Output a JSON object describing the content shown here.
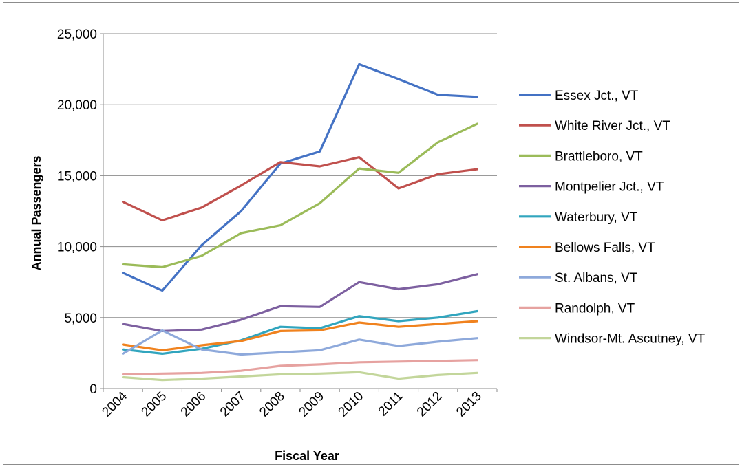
{
  "chart_data": {
    "type": "line",
    "title": "",
    "xlabel": "Fiscal Year",
    "ylabel": "Annual Passengers",
    "x": [
      "2004",
      "2005",
      "2006",
      "2007",
      "2008",
      "2009",
      "2010",
      "2011",
      "2012",
      "2013"
    ],
    "ylim": [
      0,
      25000
    ],
    "yticks": [
      0,
      5000,
      10000,
      15000,
      20000,
      25000
    ],
    "ytick_labels": [
      "0",
      "5,000",
      "10,000",
      "15,000",
      "20,000",
      "25,000"
    ],
    "grid": true,
    "legend_position": "right",
    "series": [
      {
        "name": "Essex Jct., VT",
        "color": "#4472c4",
        "values": [
          8150,
          6900,
          10100,
          12500,
          15850,
          16700,
          22850,
          21800,
          20700,
          20550
        ]
      },
      {
        "name": "White River Jct., VT",
        "color": "#c0504d",
        "values": [
          13150,
          11850,
          12750,
          14300,
          15950,
          15650,
          16300,
          14100,
          15100,
          15450
        ]
      },
      {
        "name": "Brattleboro, VT",
        "color": "#9bbb59",
        "values": [
          8750,
          8550,
          9350,
          10950,
          11500,
          13050,
          15500,
          15200,
          17350,
          18650
        ]
      },
      {
        "name": "Montpelier Jct., VT",
        "color": "#7d60a0",
        "values": [
          4550,
          4050,
          4150,
          4850,
          5800,
          5750,
          7500,
          7000,
          7350,
          8050
        ]
      },
      {
        "name": "Waterbury, VT",
        "color": "#31a5be",
        "values": [
          2750,
          2450,
          2800,
          3400,
          4350,
          4250,
          5100,
          4750,
          5000,
          5450
        ]
      },
      {
        "name": "Bellows Falls, VT",
        "color": "#f0821e",
        "values": [
          3100,
          2700,
          3050,
          3350,
          4050,
          4100,
          4650,
          4350,
          4550,
          4750
        ]
      },
      {
        "name": "St. Albans, VT",
        "color": "#8ea9db",
        "values": [
          2450,
          4100,
          2750,
          2400,
          2550,
          2700,
          3450,
          3000,
          3300,
          3550
        ]
      },
      {
        "name": "Randolph, VT",
        "color": "#e6a2a0",
        "values": [
          1000,
          1050,
          1100,
          1250,
          1600,
          1700,
          1850,
          1900,
          1950,
          2000
        ]
      },
      {
        "name": "Windsor-Mt. Ascutney, VT",
        "color": "#c3d69b",
        "values": [
          800,
          600,
          700,
          850,
          1000,
          1050,
          1150,
          700,
          950,
          1100
        ]
      }
    ]
  }
}
